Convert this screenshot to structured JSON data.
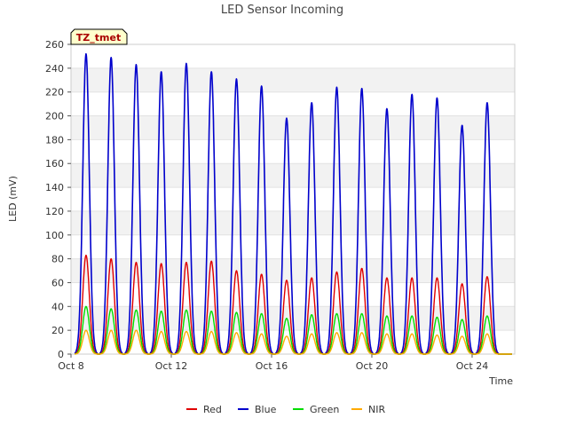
{
  "chart_data": {
    "type": "line",
    "title": "LED Sensor Incoming",
    "xlabel": "Time",
    "ylabel": "LED (mV)",
    "tag": "TZ_tmet",
    "ylim": [
      0,
      260
    ],
    "xlim": [
      8,
      25.7
    ],
    "y_ticks": [
      0,
      20,
      40,
      60,
      80,
      100,
      120,
      140,
      160,
      180,
      200,
      220,
      240,
      260
    ],
    "x_ticks": [
      {
        "value": 8,
        "label": "Oct 8"
      },
      {
        "value": 12,
        "label": "Oct 12"
      },
      {
        "value": 16,
        "label": "Oct 16"
      },
      {
        "value": 20,
        "label": "Oct 20"
      },
      {
        "value": 24,
        "label": "Oct 24"
      }
    ],
    "day_peak_centers": [
      8.6,
      9.6,
      10.6,
      11.6,
      12.6,
      13.6,
      14.6,
      15.6,
      16.6,
      17.6,
      18.6,
      19.6,
      20.6,
      21.6,
      22.6,
      23.6,
      24.6
    ],
    "series": [
      {
        "name": "Red",
        "color": "#e00000",
        "daily_peaks": [
          83,
          80,
          77,
          76,
          77,
          78,
          70,
          67,
          62,
          64,
          69,
          72,
          64,
          64,
          64,
          59,
          65
        ]
      },
      {
        "name": "Blue",
        "color": "#0000cc",
        "daily_peaks": [
          252,
          249,
          243,
          237,
          244,
          237,
          231,
          225,
          198,
          211,
          224,
          223,
          206,
          218,
          215,
          192,
          211
        ]
      },
      {
        "name": "Green",
        "color": "#00dd00",
        "daily_peaks": [
          40,
          38,
          37,
          36,
          37,
          36,
          35,
          34,
          30,
          33,
          34,
          34,
          32,
          32,
          31,
          29,
          32
        ]
      },
      {
        "name": "NIR",
        "color": "#ffaa00",
        "daily_peaks": [
          20,
          20,
          20,
          19,
          19,
          19,
          18,
          17,
          15,
          17,
          18,
          18,
          17,
          17,
          16,
          15,
          17
        ]
      }
    ]
  }
}
